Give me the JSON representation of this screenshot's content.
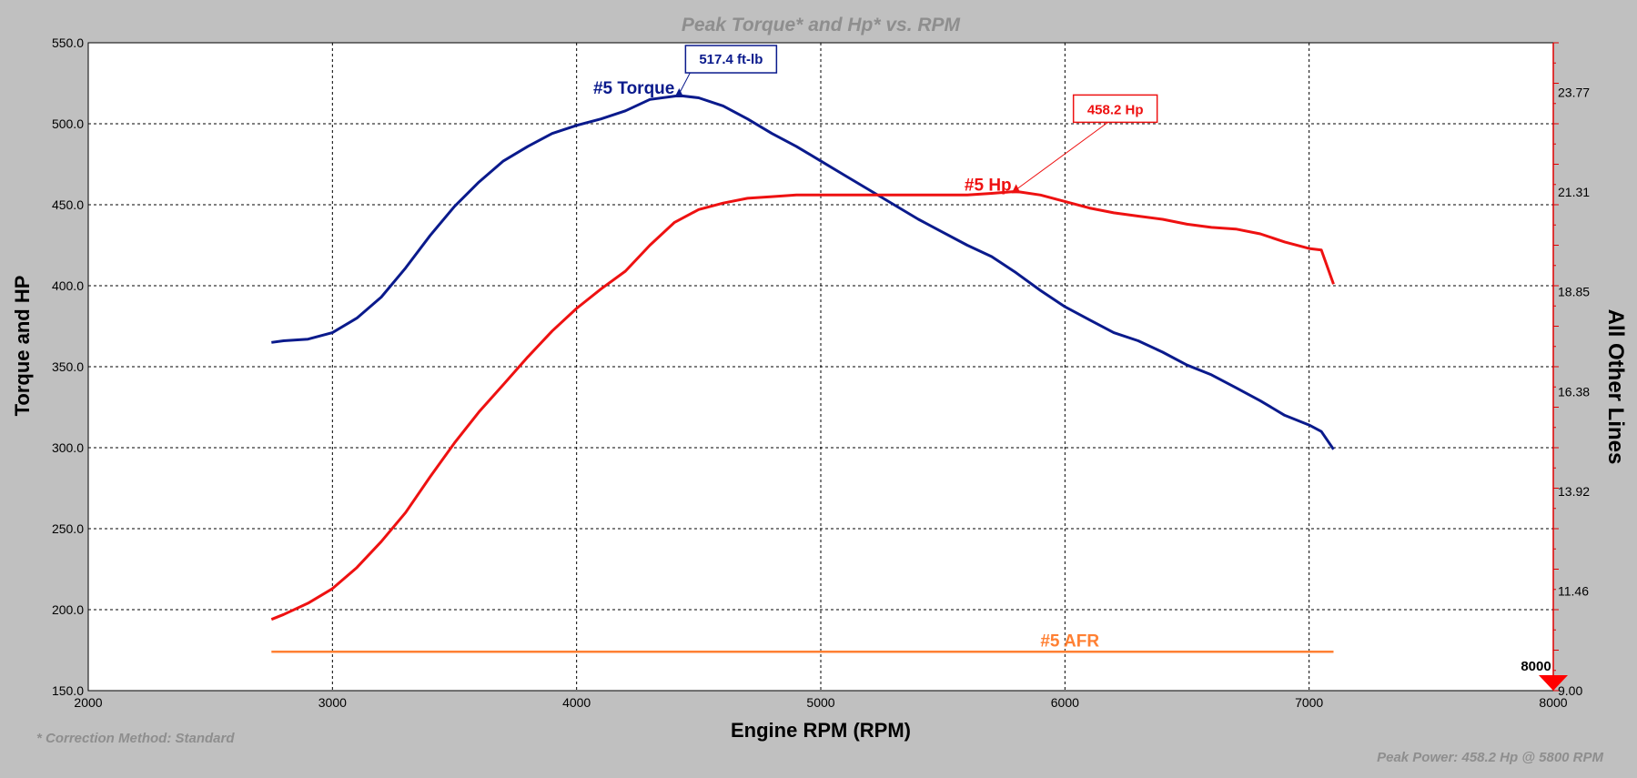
{
  "chart_data": {
    "type": "line",
    "title": "Peak Torque* and Hp* vs. RPM",
    "xlabel": "Engine RPM (RPM)",
    "ylabel": "Torque and HP",
    "y2label": "All Other Lines",
    "xlim": [
      2000,
      8000
    ],
    "ylim": [
      150,
      550
    ],
    "y2lim": [
      9.0,
      25.0
    ],
    "x_ticks": [
      2000,
      3000,
      4000,
      5000,
      6000,
      7000,
      8000
    ],
    "y_ticks": [
      "150.0",
      "200.0",
      "250.0",
      "300.0",
      "350.0",
      "400.0",
      "450.0",
      "500.0",
      "550.0"
    ],
    "y2_ticks": [
      "9.00",
      "11.46",
      "13.92",
      "16.38",
      "18.85",
      "21.31",
      "23.77"
    ],
    "grid": true,
    "series": [
      {
        "name": "#5 Torque",
        "color": "#0a1a8c",
        "x": [
          2750,
          2800,
          2900,
          3000,
          3100,
          3200,
          3300,
          3400,
          3500,
          3600,
          3700,
          3800,
          3900,
          4000,
          4100,
          4200,
          4300,
          4420,
          4500,
          4600,
          4700,
          4800,
          4900,
          5000,
          5100,
          5200,
          5300,
          5400,
          5500,
          5600,
          5700,
          5800,
          5900,
          6000,
          6100,
          6200,
          6300,
          6400,
          6500,
          6600,
          6700,
          6800,
          6900,
          7000,
          7050,
          7100
        ],
        "values": [
          365,
          366,
          367,
          371,
          380,
          393,
          411,
          431,
          449,
          464,
          477,
          486,
          494,
          499,
          503,
          508,
          515,
          517.4,
          516,
          511,
          503,
          494,
          486,
          477,
          468,
          459,
          450,
          441,
          433,
          425,
          418,
          408,
          397,
          387,
          379,
          371,
          366,
          359,
          351,
          345,
          337,
          329,
          320,
          314,
          310,
          299
        ]
      },
      {
        "name": "#5 Hp",
        "color": "#ee1111",
        "x": [
          2750,
          2800,
          2900,
          3000,
          3100,
          3200,
          3300,
          3400,
          3500,
          3600,
          3700,
          3800,
          3900,
          4000,
          4100,
          4200,
          4300,
          4400,
          4500,
          4600,
          4700,
          4800,
          4900,
          5000,
          5100,
          5200,
          5300,
          5400,
          5500,
          5600,
          5700,
          5800,
          5900,
          6000,
          6100,
          6200,
          6300,
          6400,
          6500,
          6600,
          6700,
          6800,
          6900,
          7000,
          7050,
          7100
        ],
        "values": [
          194,
          197,
          204,
          213,
          226,
          242,
          260,
          282,
          303,
          322,
          339,
          356,
          372,
          386,
          398,
          409,
          425,
          439,
          447,
          451,
          454,
          455,
          456,
          456,
          456,
          456,
          456,
          456,
          456,
          456,
          457,
          458.2,
          456,
          452,
          448,
          445,
          443,
          441,
          438,
          436,
          435,
          432,
          427,
          423,
          422,
          401
        ]
      },
      {
        "name": "#5 AFR",
        "color": "#ff8033",
        "x": [
          2750,
          7100
        ],
        "values": [
          174,
          174
        ]
      }
    ],
    "annotations": {
      "torque_peak": {
        "label": "517.4 ft-lb",
        "x": 4420,
        "y": 517.4
      },
      "hp_peak": {
        "label": "458.2 Hp",
        "x": 5800,
        "y": 458.2
      }
    },
    "marker_label": "8000",
    "footnote": "* Correction Method: Standard",
    "summary": "Peak Power: 458.2 Hp @ 5800 RPM"
  }
}
